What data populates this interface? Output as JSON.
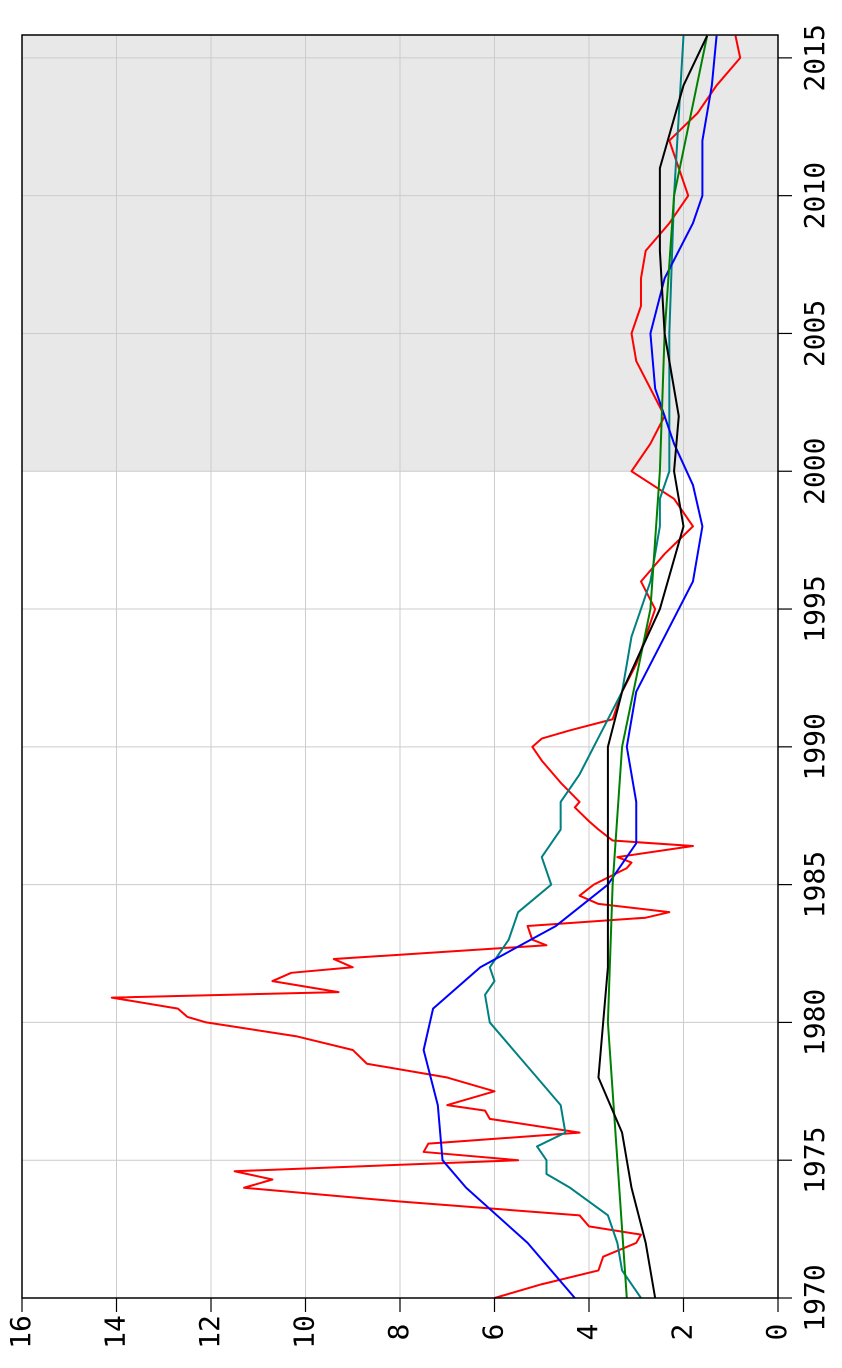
{
  "chart_data": {
    "type": "line",
    "xlim": [
      1970,
      2015.83
    ],
    "xticks": [
      1970,
      1975,
      1980,
      1985,
      1990,
      1995,
      2000,
      2005,
      2010,
      2015
    ],
    "ylim": [
      0,
      16
    ],
    "yticks": [
      0,
      2,
      4,
      6,
      8,
      10,
      12,
      14,
      16
    ],
    "grid": true,
    "shaded_region": [
      2000,
      2015.83
    ],
    "shade_color": "#e8e8e8",
    "series": [
      {
        "color": "#ff0000",
        "x": [
          1970,
          1970.5,
          1971,
          1971.5,
          1972,
          1972.3,
          1972.6,
          1973,
          1973.5,
          1974,
          1974.3,
          1974.6,
          1975,
          1975.3,
          1975.6,
          1976,
          1976.5,
          1976.8,
          1977,
          1977.5,
          1978,
          1978.5,
          1979,
          1979.5,
          1980,
          1980.2,
          1980.5,
          1980.9,
          1981.1,
          1981.5,
          1981.8,
          1982,
          1982.3,
          1982.8,
          1983,
          1983.5,
          1983.8,
          1984,
          1984.3,
          1984.6,
          1985,
          1985.6,
          1985.8,
          1986,
          1986.4,
          1986.6,
          1987,
          1987.3,
          1987.8,
          1988,
          1988.7,
          1989.5,
          1990,
          1990.3,
          1990.6,
          1991,
          1992,
          1993,
          1994,
          1995,
          1996,
          1997,
          1998,
          1999,
          2000,
          2001,
          2002,
          2003,
          2004,
          2005,
          2006,
          2007,
          2008,
          2009,
          2010,
          2011,
          2012,
          2013,
          2014,
          2015,
          2015.8
        ],
        "values": [
          6.0,
          5.0,
          3.8,
          3.7,
          3.0,
          2.9,
          4.0,
          4.2,
          8.0,
          11.3,
          10.7,
          11.5,
          5.5,
          7.5,
          7.4,
          4.2,
          6.1,
          6.2,
          7.0,
          6.0,
          7.0,
          8.7,
          9.0,
          10.2,
          12.1,
          12.5,
          12.7,
          14.1,
          9.3,
          10.7,
          10.3,
          9.0,
          9.4,
          4.9,
          5.2,
          5.3,
          2.8,
          2.3,
          3.8,
          4.2,
          3.9,
          3.2,
          3.1,
          3.4,
          1.8,
          3.5,
          3.8,
          4.0,
          4.3,
          4.2,
          4.6,
          5.0,
          5.2,
          5.0,
          4.4,
          3.5,
          3.3,
          3.0,
          2.8,
          2.6,
          2.9,
          2.4,
          1.8,
          2.2,
          3.1,
          2.7,
          2.4,
          2.7,
          3.0,
          3.1,
          2.9,
          2.9,
          2.8,
          2.3,
          1.9,
          2.1,
          2.3,
          1.7,
          1.3,
          0.8,
          0.9
        ]
      },
      {
        "color": "#008080",
        "x": [
          1970,
          1971,
          1972,
          1973,
          1974,
          1974.5,
          1975,
          1975.5,
          1976,
          1977,
          1978,
          1979,
          1980,
          1981,
          1981.5,
          1982,
          1983,
          1984,
          1985,
          1986,
          1987,
          1988,
          1989,
          1990,
          1991,
          1992,
          1993,
          1994,
          1995,
          1996,
          1997,
          1998,
          1999,
          2000,
          2001,
          2002,
          2005,
          2010,
          2015.8
        ],
        "values": [
          2.9,
          3.3,
          3.4,
          3.6,
          4.4,
          4.9,
          4.9,
          5.1,
          4.5,
          4.6,
          5.1,
          5.6,
          6.1,
          6.2,
          6.0,
          6.1,
          5.7,
          5.5,
          4.8,
          5.0,
          4.6,
          4.6,
          4.2,
          3.9,
          3.6,
          3.3,
          3.2,
          3.1,
          2.9,
          2.7,
          2.6,
          2.5,
          2.5,
          2.3,
          2.3,
          2.3,
          2.3,
          2.2,
          2.0
        ]
      },
      {
        "color": "#0000ff",
        "x": [
          1970,
          1972,
          1974,
          1975,
          1977,
          1979,
          1980.5,
          1982,
          1983.5,
          1985,
          1986.5,
          1988,
          1990,
          1992,
          1994,
          1996,
          1998,
          1999.5,
          2001,
          2003,
          2005,
          2007,
          2009,
          2010,
          2012,
          2014,
          2015.8
        ],
        "values": [
          4.3,
          5.3,
          6.6,
          7.1,
          7.2,
          7.5,
          7.3,
          6.3,
          4.7,
          3.6,
          3.0,
          3.0,
          3.2,
          3.0,
          2.4,
          1.8,
          1.6,
          1.8,
          2.2,
          2.6,
          2.7,
          2.4,
          1.8,
          1.6,
          1.6,
          1.4,
          1.3
        ]
      },
      {
        "color": "#008000",
        "x": [
          1970,
          1975,
          1980,
          1985,
          1990,
          1995,
          2000,
          2005,
          2010,
          2015.8
        ],
        "values": [
          3.2,
          3.4,
          3.6,
          3.5,
          3.3,
          2.7,
          2.5,
          2.4,
          2.2,
          1.5
        ]
      },
      {
        "color": "#000000",
        "x": [
          1970,
          1972,
          1974,
          1976,
          1978,
          1980,
          1982,
          1985,
          1988,
          1990,
          1992,
          1995,
          1998,
          2000,
          2002,
          2005,
          2008,
          2011,
          2014,
          2015.8
        ],
        "values": [
          2.6,
          2.8,
          3.1,
          3.3,
          3.8,
          3.7,
          3.6,
          3.6,
          3.6,
          3.6,
          3.3,
          2.5,
          2.0,
          2.2,
          2.1,
          2.4,
          2.5,
          2.5,
          2.0,
          1.5
        ]
      }
    ]
  }
}
